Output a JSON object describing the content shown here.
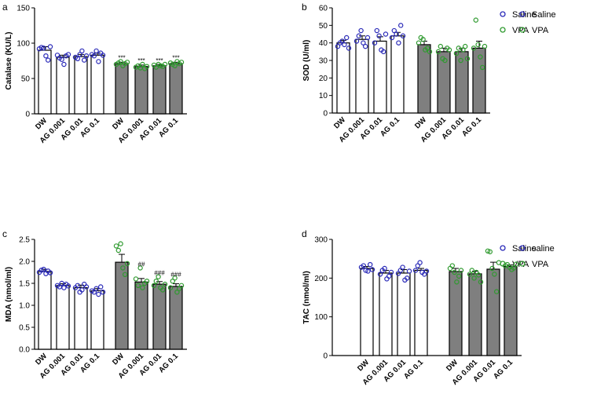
{
  "colors": {
    "saline": "#2a2ab8",
    "vpa": "#2f9a2f",
    "vpa_bar": "#7f7f7f",
    "axis": "#000000"
  },
  "categories": [
    "DW",
    "AG 0.001",
    "AG 0.01",
    "AG 0.1"
  ],
  "chart_data": [
    {
      "type": "bar",
      "panel_label": "a",
      "title": "",
      "xlabel": "",
      "ylabel": "Catalase (KU/L)",
      "ylim": [
        0,
        150
      ],
      "yticks": [
        0,
        50,
        100,
        150
      ],
      "categories": [
        "DW",
        "AG 0.001",
        "AG 0.01",
        "AG 0.1"
      ],
      "legend": [
        "Saline",
        "VPA"
      ],
      "series": [
        {
          "name": "Saline",
          "values": [
            90,
            80,
            81,
            83
          ],
          "errors": [
            5,
            3,
            3,
            3
          ],
          "points": [
            [
              92,
              94,
              93,
              82,
              76,
              95
            ],
            [
              83,
              79,
              77,
              70,
              82,
              84
            ],
            [
              80,
              78,
              84,
              89,
              76,
              82
            ],
            [
              84,
              82,
              89,
              74,
              86,
              83
            ]
          ],
          "annotations": [
            "",
            "",
            "",
            ""
          ]
        },
        {
          "name": "VPA",
          "values": [
            71,
            67,
            68,
            71
          ],
          "errors": [
            2,
            2,
            2,
            2
          ],
          "points": [
            [
              70,
              72,
              74,
              68,
              71,
              73
            ],
            [
              66,
              68,
              65,
              70,
              64,
              67
            ],
            [
              69,
              66,
              70,
              68,
              67,
              70
            ],
            [
              72,
              70,
              68,
              74,
              71,
              73
            ]
          ],
          "annotations": [
            "***",
            "***",
            "***",
            "***"
          ]
        }
      ]
    },
    {
      "type": "bar",
      "panel_label": "b",
      "title": "",
      "xlabel": "",
      "ylabel": "SOD (U/ml)",
      "ylim": [
        0,
        60
      ],
      "yticks": [
        0,
        10,
        20,
        30,
        40,
        50,
        60
      ],
      "categories": [
        "DW",
        "AG 0.001",
        "AG 0.01",
        "AG 0.1"
      ],
      "legend": [
        "Saline",
        "VPA"
      ],
      "series": [
        {
          "name": "Saline",
          "values": [
            40,
            42,
            41,
            44
          ],
          "errors": [
            1.5,
            2,
            2.5,
            2
          ],
          "points": [
            [
              38,
              40,
              41,
              39,
              43,
              37
            ],
            [
              41,
              44,
              47,
              40,
              38,
              43
            ],
            [
              40,
              47,
              44,
              36,
              35,
              45
            ],
            [
              43,
              47,
              45,
              40,
              50,
              44
            ]
          ],
          "annotations": [
            "",
            "",
            "",
            ""
          ]
        },
        {
          "name": "VPA",
          "values": [
            39,
            35,
            35,
            37
          ],
          "errors": [
            2,
            2,
            2,
            4
          ],
          "points": [
            [
              40,
              43,
              42,
              36,
              37,
              35
            ],
            [
              35,
              38,
              31,
              30,
              37,
              36
            ],
            [
              34,
              37,
              30,
              36,
              38,
              31
            ],
            [
              37,
              53,
              39,
              32,
              26,
              38
            ]
          ],
          "annotations": [
            "",
            "",
            "",
            ""
          ]
        }
      ]
    },
    {
      "type": "bar",
      "panel_label": "c",
      "title": "",
      "xlabel": "",
      "ylabel": "MDA (nmol/ml)",
      "ylim": [
        0,
        2.5
      ],
      "yticks": [
        0.0,
        0.5,
        1.0,
        1.5,
        2.0,
        2.5
      ],
      "categories": [
        "DW",
        "AG 0.001",
        "AG 0.01",
        "AG 0.1"
      ],
      "legend": [
        "Saline",
        "VPA"
      ],
      "series": [
        {
          "name": "Saline",
          "values": [
            1.77,
            1.45,
            1.4,
            1.33
          ],
          "errors": [
            0.05,
            0.04,
            0.06,
            0.05
          ],
          "points": [
            [
              1.75,
              1.8,
              1.82,
              1.72,
              1.78,
              1.74
            ],
            [
              1.45,
              1.42,
              1.5,
              1.4,
              1.48,
              1.44
            ],
            [
              1.4,
              1.45,
              1.3,
              1.35,
              1.48,
              1.42
            ],
            [
              1.33,
              1.3,
              1.38,
              1.25,
              1.42,
              1.3
            ]
          ],
          "annotations": [
            "",
            "",
            "",
            ""
          ]
        },
        {
          "name": "VPA",
          "values": [
            1.98,
            1.53,
            1.48,
            1.43
          ],
          "errors": [
            0.18,
            0.08,
            0.06,
            0.06
          ],
          "points": [
            [
              2.35,
              2.25,
              2.4,
              1.85,
              1.7,
              1.95
            ],
            [
              1.6,
              1.45,
              1.85,
              1.4,
              1.5,
              1.55
            ],
            [
              1.45,
              1.55,
              1.65,
              1.4,
              1.35,
              1.48
            ],
            [
              1.4,
              1.55,
              1.62,
              1.3,
              1.38,
              1.45
            ]
          ],
          "annotations": [
            "",
            "##",
            "###",
            "###"
          ]
        }
      ]
    },
    {
      "type": "bar",
      "panel_label": "d",
      "title": "",
      "xlabel": "",
      "ylabel": "TAC (nmol/ml)",
      "ylim": [
        0,
        300
      ],
      "yticks": [
        0,
        100,
        200,
        300
      ],
      "categories": [
        "DW",
        "AG 0.001",
        "AG 0.01",
        "AG 0.1"
      ],
      "legend": [
        "saline",
        "VPA"
      ],
      "series": [
        {
          "name": "saline",
          "values": [
            225,
            213,
            213,
            220
          ],
          "errors": [
            5,
            7,
            9,
            5
          ],
          "points": [
            [
              228,
              232,
              220,
              218,
              235,
              222
            ],
            [
              210,
              220,
              225,
              198,
              205,
              215
            ],
            [
              212,
              220,
              228,
              195,
              200,
              218
            ],
            [
              220,
              232,
              240,
              215,
              210,
              218
            ]
          ],
          "annotations": [
            "",
            "",
            "",
            ""
          ]
        },
        {
          "name": "VPA",
          "values": [
            217,
            211,
            223,
            230
          ],
          "errors": [
            8,
            7,
            18,
            4
          ],
          "points": [
            [
              225,
              232,
              215,
              190,
              205,
              220
            ],
            [
              210,
              220,
              200,
              215,
              208,
              190
            ],
            [
              270,
              268,
              225,
              210,
              165,
              240
            ],
            [
              232,
              235,
              228,
              222,
              226,
              236
            ]
          ],
          "annotations": [
            "",
            "",
            "",
            ""
          ]
        }
      ]
    }
  ]
}
